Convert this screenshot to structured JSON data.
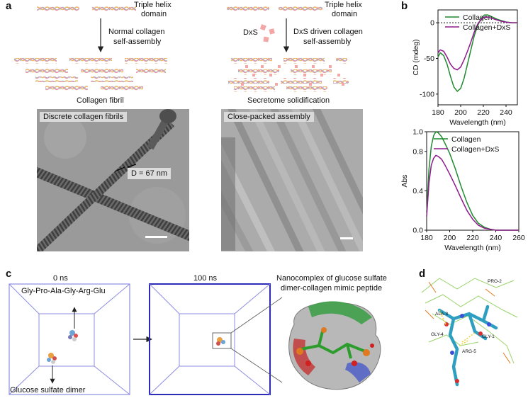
{
  "panel_a": {
    "letter": "a",
    "left": {
      "domain_label_1": "Triple helix",
      "domain_label_2": "domain",
      "process_label_1": "Normal collagen",
      "process_label_2": "self-assembly",
      "result_label": "Collagen fibril",
      "em_tag": "Discrete collagen fibrils",
      "measure_label": "D = 67 nm"
    },
    "right": {
      "domain_label_1": "Triple helix",
      "domain_label_2": "domain",
      "agent_label": "DxS",
      "process_label_1": "DxS driven collagen",
      "process_label_2": "self-assembly",
      "result_label": "Secretome solidification",
      "em_tag": "Close-packed assembly"
    }
  },
  "panel_b": {
    "letter": "b",
    "colors": {
      "collagen": "#1f8a2e",
      "collagen_dxs": "#8e1b8c"
    },
    "chart_data": [
      {
        "type": "line",
        "xlabel": "Wavelength (nm)",
        "ylabel": "CD (mdeg)",
        "xlim": [
          180,
          250
        ],
        "ylim": [
          -115,
          18
        ],
        "xticks": [
          "180",
          "200",
          "220",
          "240"
        ],
        "yticks": [
          "0",
          "-50",
          "-100"
        ],
        "ytick_values": [
          0,
          -50,
          -100
        ],
        "xtick_values": [
          180,
          200,
          220,
          240
        ],
        "legend_position": "top-right",
        "reference_line": 0,
        "series": [
          {
            "name": "Collagen",
            "x": [
              180,
              182,
              185,
              188,
              191,
              194,
              197,
              200,
              203,
              206,
              209,
              212,
              215,
              218,
              221,
              224,
              228,
              232,
              236,
              240,
              245,
              250
            ],
            "values": [
              -48,
              -42,
              -46,
              -58,
              -75,
              -90,
              -96,
              -92,
              -78,
              -58,
              -38,
              -18,
              -4,
              6,
              11,
              11,
              8,
              5,
              3,
              1,
              0,
              0
            ]
          },
          {
            "name": "Collagen+DxS",
            "x": [
              180,
              182,
              185,
              188,
              191,
              194,
              197,
              200,
              203,
              206,
              209,
              212,
              215,
              218,
              221,
              224,
              228,
              232,
              236,
              240,
              245,
              250
            ],
            "values": [
              -42,
              -38,
              -40,
              -48,
              -58,
              -64,
              -66,
              -62,
              -52,
              -40,
              -27,
              -13,
              -2,
              5,
              8,
              8,
              6,
              4,
              2,
              1,
              0,
              0
            ]
          }
        ]
      },
      {
        "type": "line",
        "xlabel": "Wavelength (nm)",
        "ylabel": "Abs",
        "xlim": [
          180,
          260
        ],
        "ylim": [
          0,
          1.0
        ],
        "xticks": [
          "180",
          "200",
          "220",
          "240",
          "260"
        ],
        "xtick_values": [
          180,
          200,
          220,
          240,
          260
        ],
        "yticks": [
          "0.0",
          "0.4",
          "0.8",
          "1.0"
        ],
        "ytick_values": [
          0,
          0.4,
          0.8,
          1.0
        ],
        "legend_position": "top-right",
        "series": [
          {
            "name": "Collagen",
            "x": [
              180,
              182,
              184,
              186,
              188,
              190,
              193,
              196,
              200,
              205,
              210,
              215,
              220,
              225,
              230,
              235,
              240,
              250,
              260
            ],
            "values": [
              0.18,
              0.62,
              0.85,
              0.96,
              1.0,
              0.99,
              0.95,
              0.88,
              0.78,
              0.62,
              0.44,
              0.28,
              0.15,
              0.07,
              0.03,
              0.01,
              0.0,
              0.0,
              0.0
            ]
          },
          {
            "name": "Collagen+DxS",
            "x": [
              180,
              182,
              184,
              186,
              188,
              190,
              193,
              196,
              200,
              205,
              210,
              215,
              220,
              225,
              230,
              235,
              240,
              250,
              260
            ],
            "values": [
              0.14,
              0.48,
              0.66,
              0.73,
              0.76,
              0.75,
              0.72,
              0.66,
              0.57,
              0.45,
              0.32,
              0.2,
              0.11,
              0.05,
              0.02,
              0.01,
              0.0,
              0.0,
              0.0
            ]
          }
        ]
      }
    ]
  },
  "panel_c": {
    "letter": "c",
    "time_0": "0 ns",
    "peptide_label": "Gly-Pro-Ala-Gly-Arg-Glu",
    "dimer_label": "Glucose sulfate dimer",
    "time_100": "100 ns",
    "complex_title_1": "Nanocomplex of glucose sulfate",
    "complex_title_2": "dimer-collagen mimic peptide"
  },
  "panel_d": {
    "letter": "d",
    "residues": [
      "PRO-2",
      "ALA-3",
      "GLY-4",
      "GLY-1",
      "ARG-5"
    ]
  }
}
